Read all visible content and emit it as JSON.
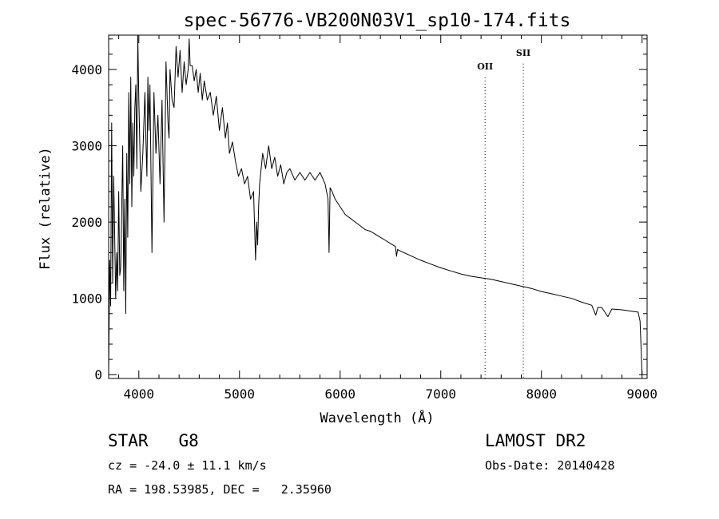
{
  "chart_data": {
    "type": "line",
    "title": "spec-56776-VB200N03V1_sp10-174.fits",
    "xlabel": "Wavelength (Å)",
    "ylabel": "Flux (relative)",
    "xlim": [
      3700,
      9050
    ],
    "ylim": [
      -50,
      4450
    ],
    "x_ticks": [
      "4000",
      "5000",
      "6000",
      "7000",
      "8000",
      "9000"
    ],
    "y_ticks": [
      "0",
      "1000",
      "2000",
      "3000",
      "4000"
    ],
    "x_tick_values": [
      4000,
      5000,
      6000,
      7000,
      8000,
      9000
    ],
    "y_tick_values": [
      0,
      1000,
      2000,
      3000,
      4000
    ],
    "grid": false,
    "emission_lines": [
      {
        "name": "OII",
        "wavelength": 7440,
        "label_flux": 4000
      },
      {
        "name": "SII",
        "wavelength": 7820,
        "label_flux": 4180
      }
    ],
    "series": [
      {
        "x": [
          3700,
          3710,
          3720,
          3730,
          3740,
          3750,
          3760,
          3770,
          3780,
          3790,
          3800,
          3810,
          3820,
          3830,
          3840,
          3850,
          3860,
          3870,
          3880,
          3890,
          3900,
          3910,
          3920,
          3930,
          3940,
          3950,
          3960,
          3970,
          3980,
          3990,
          4000,
          4020,
          4040,
          4060,
          4070,
          4080,
          4090,
          4100,
          4110,
          4130,
          4150,
          4170,
          4190,
          4210,
          4230,
          4250,
          4270,
          4290,
          4300,
          4310,
          4330,
          4350,
          4370,
          4390,
          4410,
          4430,
          4450,
          4470,
          4490,
          4500,
          4510,
          4530,
          4550,
          4570,
          4590,
          4610,
          4630,
          4650,
          4680,
          4710,
          4740,
          4770,
          4800,
          4830,
          4860,
          4880,
          4900,
          4930,
          4960,
          4990,
          5020,
          5050,
          5080,
          5110,
          5140,
          5160,
          5170,
          5180,
          5190,
          5200,
          5230,
          5260,
          5290,
          5320,
          5350,
          5380,
          5410,
          5440,
          5470,
          5500,
          5550,
          5600,
          5650,
          5700,
          5750,
          5800,
          5850,
          5880,
          5890,
          5900,
          5920,
          5950,
          6000,
          6050,
          6100,
          6150,
          6200,
          6250,
          6300,
          6350,
          6400,
          6450,
          6500,
          6550,
          6560,
          6570,
          6600,
          6650,
          6700,
          6800,
          6900,
          7000,
          7100,
          7200,
          7300,
          7400,
          7500,
          7600,
          7700,
          7800,
          7900,
          8000,
          8100,
          8200,
          8300,
          8400,
          8500,
          8540,
          8560,
          8600,
          8660,
          8700,
          8800,
          8900,
          8960,
          8980,
          9000
        ],
        "y": [
          0,
          1500,
          900,
          3300,
          1200,
          2600,
          1800,
          1000,
          1600,
          1100,
          2400,
          1300,
          1400,
          2200,
          3000,
          1100,
          2300,
          800,
          2900,
          1800,
          3700,
          2500,
          3900,
          2200,
          3300,
          2600,
          3500,
          3800,
          2700,
          4450,
          3600,
          2400,
          2900,
          3700,
          3100,
          2600,
          3900,
          3200,
          3800,
          1600,
          3700,
          2900,
          3400,
          2500,
          3600,
          2000,
          4100,
          3300,
          3100,
          4000,
          3600,
          3500,
          4300,
          3900,
          4250,
          3700,
          4100,
          3800,
          4000,
          4400,
          4050,
          4050,
          3850,
          4000,
          3700,
          3950,
          3600,
          3850,
          3600,
          3700,
          3400,
          3650,
          3200,
          3500,
          3100,
          3300,
          2900,
          3050,
          2800,
          2600,
          2700,
          2500,
          2600,
          2300,
          2400,
          1500,
          2000,
          1700,
          2200,
          2500,
          2900,
          2700,
          3000,
          2700,
          2850,
          2600,
          2750,
          2500,
          2650,
          2700,
          2550,
          2650,
          2550,
          2650,
          2550,
          2650,
          2500,
          2300,
          1600,
          2450,
          2400,
          2300,
          2200,
          2100,
          2050,
          2000,
          1950,
          1900,
          1880,
          1840,
          1800,
          1760,
          1720,
          1680,
          1550,
          1640,
          1620,
          1590,
          1560,
          1500,
          1450,
          1400,
          1360,
          1320,
          1290,
          1270,
          1250,
          1220,
          1190,
          1160,
          1130,
          1090,
          1060,
          1030,
          1000,
          950,
          910,
          780,
          880,
          880,
          760,
          860,
          850,
          830,
          820,
          700,
          0
        ]
      }
    ]
  },
  "footer": {
    "left_line1": "STAR   G8",
    "left_line2": "cz = -24.0 ± 11.1 km/s",
    "left_line3": "RA = 198.53985, DEC =   2.35960",
    "right_line1": "LAMOST DR2",
    "right_line2": "Obs-Date: 20140428"
  }
}
